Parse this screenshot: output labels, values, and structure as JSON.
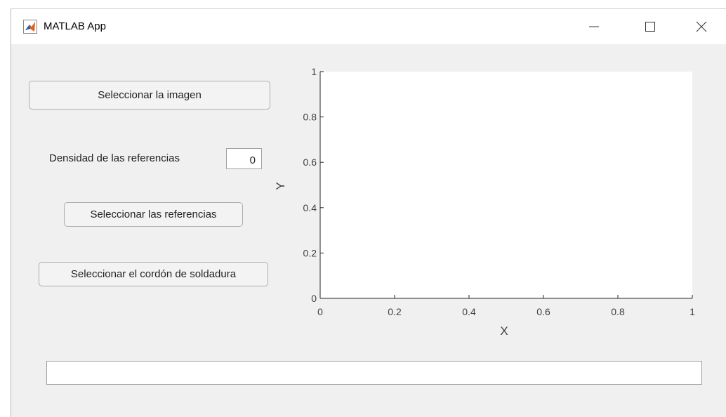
{
  "window": {
    "title": "MATLAB App"
  },
  "controls": {
    "select_image": "Seleccionar la imagen",
    "density_label": "Densidad de las referencias",
    "density_value": 0,
    "select_references": "Seleccionar las referencias",
    "select_weld": "Seleccionar el cordón de soldadura"
  },
  "axes": {
    "xlabel": "X",
    "ylabel": "Y",
    "xlim": [
      0,
      1
    ],
    "ylim": [
      0,
      1
    ],
    "xticks": [
      0,
      0.2,
      0.4,
      0.6,
      0.8,
      1
    ],
    "yticks": [
      0,
      0.2,
      0.4,
      0.6,
      0.8,
      1
    ]
  }
}
